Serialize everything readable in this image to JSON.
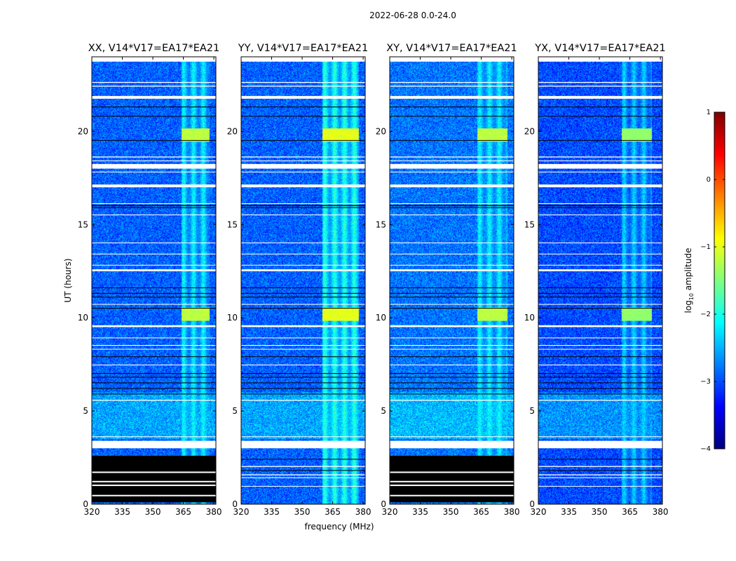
{
  "figure": {
    "suptitle": "2022-06-28 0.0-24.0"
  },
  "chart_data": {
    "type": "heatmap",
    "xlabel": "frequency (MHz)",
    "ylabel": "UT (hours)",
    "xlim": [
      320,
      381
    ],
    "ylim": [
      0,
      24
    ],
    "xticks": [
      320,
      335,
      350,
      365,
      380
    ],
    "yticks": [
      0,
      5,
      10,
      15,
      20
    ],
    "colorbar": {
      "label": "log10 amplitude",
      "label_main": "log",
      "label_sub": "10",
      "label_rest": " amplitude",
      "range": [
        -4,
        1
      ],
      "ticks": [
        1,
        0,
        -1,
        -2,
        -3,
        -4
      ],
      "tick_labels": [
        "1",
        "0",
        "−1",
        "−2",
        "−3",
        "−4"
      ],
      "colors": [
        "#00007f",
        "#0000ff",
        "#007fff",
        "#00ffff",
        "#7fff7f",
        "#ffff00",
        "#ff7f00",
        "#ff0000",
        "#7f0000"
      ]
    },
    "panels": [
      {
        "title": "XX, V14*V17=EA17*EA21",
        "rfi_band_mhz": [
          364,
          378
        ],
        "rfi_level": -1.7,
        "burst_hours": [
          10.2,
          19.8
        ],
        "black_range_hours": [
          0.1,
          2.6
        ],
        "background_level": -2.9
      },
      {
        "title": "YY, V14*V17=EA17*EA21",
        "rfi_band_mhz": [
          360,
          378
        ],
        "rfi_level": -1.5,
        "burst_hours": [
          10.2,
          19.8
        ],
        "black_range_hours": null,
        "background_level": -2.9
      },
      {
        "title": "XY, V14*V17=EA17*EA21",
        "rfi_band_mhz": [
          363,
          378
        ],
        "rfi_level": -1.7,
        "burst_hours": [
          10.2,
          19.8
        ],
        "black_range_hours": [
          0.1,
          2.6
        ],
        "background_level": -2.8
      },
      {
        "title": "YX, V14*V17=EA17*EA21",
        "rfi_band_mhz": [
          361,
          376
        ],
        "rfi_level": -1.9,
        "burst_hours": [
          10.2,
          19.8
        ],
        "black_range_hours": null,
        "background_level": -3.0
      }
    ],
    "flagged_hours": [
      {
        "start": 3.0,
        "end": 3.4,
        "kind": "white"
      },
      {
        "start": 18.0,
        "end": 18.25,
        "kind": "white"
      },
      {
        "start": 17.0,
        "end": 17.15,
        "kind": "white"
      },
      {
        "start": 21.75,
        "end": 21.9,
        "kind": "white"
      },
      {
        "start": 12.5,
        "end": 12.6,
        "kind": "white"
      },
      {
        "start": 9.5,
        "end": 9.6,
        "kind": "white"
      },
      {
        "start": 22.4,
        "end": 22.45,
        "kind": "white"
      },
      {
        "start": 22.6,
        "end": 22.65,
        "kind": "white"
      },
      {
        "start": 18.6,
        "end": 18.65,
        "kind": "white"
      },
      {
        "start": 18.4,
        "end": 18.44,
        "kind": "white"
      },
      {
        "start": 17.8,
        "end": 17.84,
        "kind": "white"
      },
      {
        "start": 16.1,
        "end": 16.14,
        "kind": "white"
      },
      {
        "start": 15.5,
        "end": 15.54,
        "kind": "white"
      },
      {
        "start": 14.0,
        "end": 14.04,
        "kind": "white"
      },
      {
        "start": 13.4,
        "end": 13.44,
        "kind": "white"
      },
      {
        "start": 12.8,
        "end": 12.84,
        "kind": "white"
      },
      {
        "start": 10.7,
        "end": 10.74,
        "kind": "white"
      },
      {
        "start": 8.9,
        "end": 8.94,
        "kind": "white"
      },
      {
        "start": 8.5,
        "end": 8.54,
        "kind": "white"
      },
      {
        "start": 8.3,
        "end": 8.33,
        "kind": "white"
      },
      {
        "start": 7.45,
        "end": 7.49,
        "kind": "white"
      },
      {
        "start": 5.55,
        "end": 5.6,
        "kind": "white"
      },
      {
        "start": 3.6,
        "end": 3.64,
        "kind": "white"
      },
      {
        "start": 2.0,
        "end": 2.05,
        "kind": "white"
      },
      {
        "start": 1.55,
        "end": 1.6,
        "kind": "white"
      },
      {
        "start": 1.4,
        "end": 1.44,
        "kind": "white"
      },
      {
        "start": 0.95,
        "end": 0.98,
        "kind": "white"
      },
      {
        "start": 21.3,
        "end": 21.33,
        "kind": "black"
      },
      {
        "start": 20.8,
        "end": 20.83,
        "kind": "black"
      },
      {
        "start": 19.5,
        "end": 19.53,
        "kind": "black"
      },
      {
        "start": 16.0,
        "end": 16.05,
        "kind": "black"
      },
      {
        "start": 15.9,
        "end": 15.93,
        "kind": "black"
      },
      {
        "start": 11.6,
        "end": 11.63,
        "kind": "black"
      },
      {
        "start": 11.3,
        "end": 11.33,
        "kind": "black"
      },
      {
        "start": 11.1,
        "end": 11.13,
        "kind": "black"
      },
      {
        "start": 10.5,
        "end": 10.53,
        "kind": "black"
      },
      {
        "start": 7.9,
        "end": 7.93,
        "kind": "black"
      },
      {
        "start": 7.0,
        "end": 7.03,
        "kind": "black"
      },
      {
        "start": 6.8,
        "end": 6.83,
        "kind": "black"
      },
      {
        "start": 6.5,
        "end": 6.53,
        "kind": "black"
      },
      {
        "start": 6.2,
        "end": 6.23,
        "kind": "black"
      },
      {
        "start": 5.9,
        "end": 5.93,
        "kind": "black"
      },
      {
        "start": 2.4,
        "end": 2.43,
        "kind": "black"
      },
      {
        "start": 1.8,
        "end": 1.83,
        "kind": "black"
      }
    ]
  }
}
